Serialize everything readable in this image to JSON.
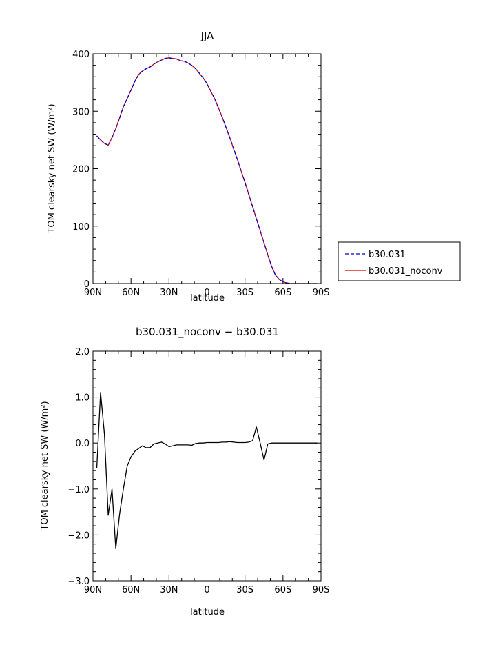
{
  "chart_data": [
    {
      "type": "line",
      "title": "JJA",
      "xlabel": "latitude",
      "ylabel": "TOM clearsky net SW (W/m²)",
      "xlim": [
        90,
        -90
      ],
      "ylim": [
        0,
        400
      ],
      "xticks": [
        90,
        60,
        30,
        0,
        -30,
        -60,
        -90
      ],
      "xtick_labels": [
        "90N",
        "60N",
        "30N",
        "0",
        "30S",
        "60S",
        "90S"
      ],
      "yticks": [
        0,
        100,
        200,
        300,
        400
      ],
      "ytick_labels": [
        "0",
        "100",
        "200",
        "300",
        "400"
      ],
      "legend": "right",
      "series": [
        {
          "name": "b30.031",
          "color": "#0000cc",
          "style": "dashed",
          "x": [
            87,
            84,
            81,
            78,
            75,
            72,
            69,
            66,
            63,
            60,
            57,
            54,
            51,
            48,
            45,
            42,
            39,
            36,
            33,
            30,
            27,
            24,
            21,
            18,
            15,
            12,
            9,
            6,
            3,
            0,
            -3,
            -6,
            -9,
            -12,
            -15,
            -18,
            -21,
            -24,
            -27,
            -30,
            -33,
            -36,
            -39,
            -42,
            -45,
            -48,
            -51,
            -54,
            -57,
            -60,
            -63,
            -66,
            -69,
            -72,
            -75,
            -78,
            -81,
            -84,
            -87
          ],
          "y": [
            257,
            250,
            244,
            241,
            254,
            270,
            288,
            308,
            322,
            337,
            352,
            364,
            370,
            374,
            377,
            382,
            386,
            389,
            392,
            393,
            392,
            391,
            388,
            387,
            384,
            380,
            374,
            366,
            358,
            348,
            335,
            322,
            306,
            290,
            272,
            254,
            235,
            216,
            196,
            176,
            155,
            134,
            113,
            92,
            71,
            50,
            30,
            15,
            7,
            3,
            1,
            0,
            0,
            0,
            0,
            0,
            0,
            0,
            0
          ]
        },
        {
          "name": "b30.031_noconv",
          "color": "#dd0000",
          "style": "solid",
          "x": [
            87,
            84,
            81,
            78,
            75,
            72,
            69,
            66,
            63,
            60,
            57,
            54,
            51,
            48,
            45,
            42,
            39,
            36,
            33,
            30,
            27,
            24,
            21,
            18,
            15,
            12,
            9,
            6,
            3,
            0,
            -3,
            -6,
            -9,
            -12,
            -15,
            -18,
            -21,
            -24,
            -27,
            -30,
            -33,
            -36,
            -39,
            -42,
            -45,
            -48,
            -51,
            -54,
            -57,
            -60,
            -63,
            -66,
            -69,
            -72,
            -75,
            -78,
            -81,
            -84,
            -87
          ],
          "y": [
            257,
            250,
            244,
            241,
            254,
            270,
            288,
            308,
            322,
            337,
            352,
            364,
            370,
            374,
            377,
            382,
            386,
            389,
            392,
            393,
            392,
            391,
            388,
            387,
            384,
            380,
            374,
            366,
            358,
            348,
            335,
            322,
            306,
            290,
            272,
            254,
            235,
            216,
            196,
            176,
            155,
            134,
            113,
            92,
            71,
            50,
            30,
            15,
            7,
            3,
            1,
            0,
            0,
            0,
            0,
            0,
            0,
            0,
            0
          ]
        }
      ]
    },
    {
      "type": "line",
      "title": "b30.031_noconv − b30.031",
      "xlabel": "latitude",
      "ylabel": "TOM clearsky net SW (W/m²)",
      "xlim": [
        90,
        -90
      ],
      "ylim": [
        -3.0,
        2.0
      ],
      "xticks": [
        90,
        60,
        30,
        0,
        -30,
        -60,
        -90
      ],
      "xtick_labels": [
        "90N",
        "60N",
        "30N",
        "0",
        "30S",
        "60S",
        "90S"
      ],
      "yticks": [
        -3.0,
        -2.0,
        -1.0,
        0.0,
        1.0,
        2.0
      ],
      "ytick_labels": [
        "−3.0",
        "−2.0",
        "−1.0",
        "0.0",
        "1.0",
        "2.0"
      ],
      "series": [
        {
          "color": "#000000",
          "style": "solid",
          "x": [
            87,
            84,
            81,
            78,
            75,
            72,
            69,
            66,
            63,
            60,
            57,
            54,
            51,
            48,
            45,
            42,
            39,
            36,
            33,
            30,
            27,
            24,
            21,
            18,
            15,
            12,
            9,
            6,
            3,
            0,
            -3,
            -6,
            -9,
            -12,
            -15,
            -18,
            -21,
            -24,
            -27,
            -30,
            -33,
            -36,
            -39,
            -42,
            -45,
            -48,
            -51,
            -54,
            -57,
            -60,
            -63,
            -66,
            -69,
            -72,
            -75,
            -78,
            -81,
            -84,
            -87
          ],
          "y": [
            -0.55,
            1.1,
            0.2,
            -1.57,
            -1.0,
            -2.3,
            -1.55,
            -1.0,
            -0.5,
            -0.3,
            -0.18,
            -0.12,
            -0.06,
            -0.1,
            -0.1,
            -0.02,
            0.0,
            0.02,
            -0.02,
            -0.08,
            -0.06,
            -0.04,
            -0.04,
            -0.04,
            -0.04,
            -0.05,
            -0.01,
            0.0,
            0.0,
            0.01,
            0.01,
            0.01,
            0.01,
            0.02,
            0.02,
            0.03,
            0.02,
            0.01,
            0.01,
            0.01,
            0.02,
            0.05,
            0.35,
            0.0,
            -0.37,
            -0.02,
            0.0,
            0.0,
            0.0,
            0.0,
            0.0,
            0.0,
            0.0,
            0.0,
            0.0,
            0.0,
            0.0,
            0.0,
            0.0
          ]
        }
      ]
    }
  ]
}
